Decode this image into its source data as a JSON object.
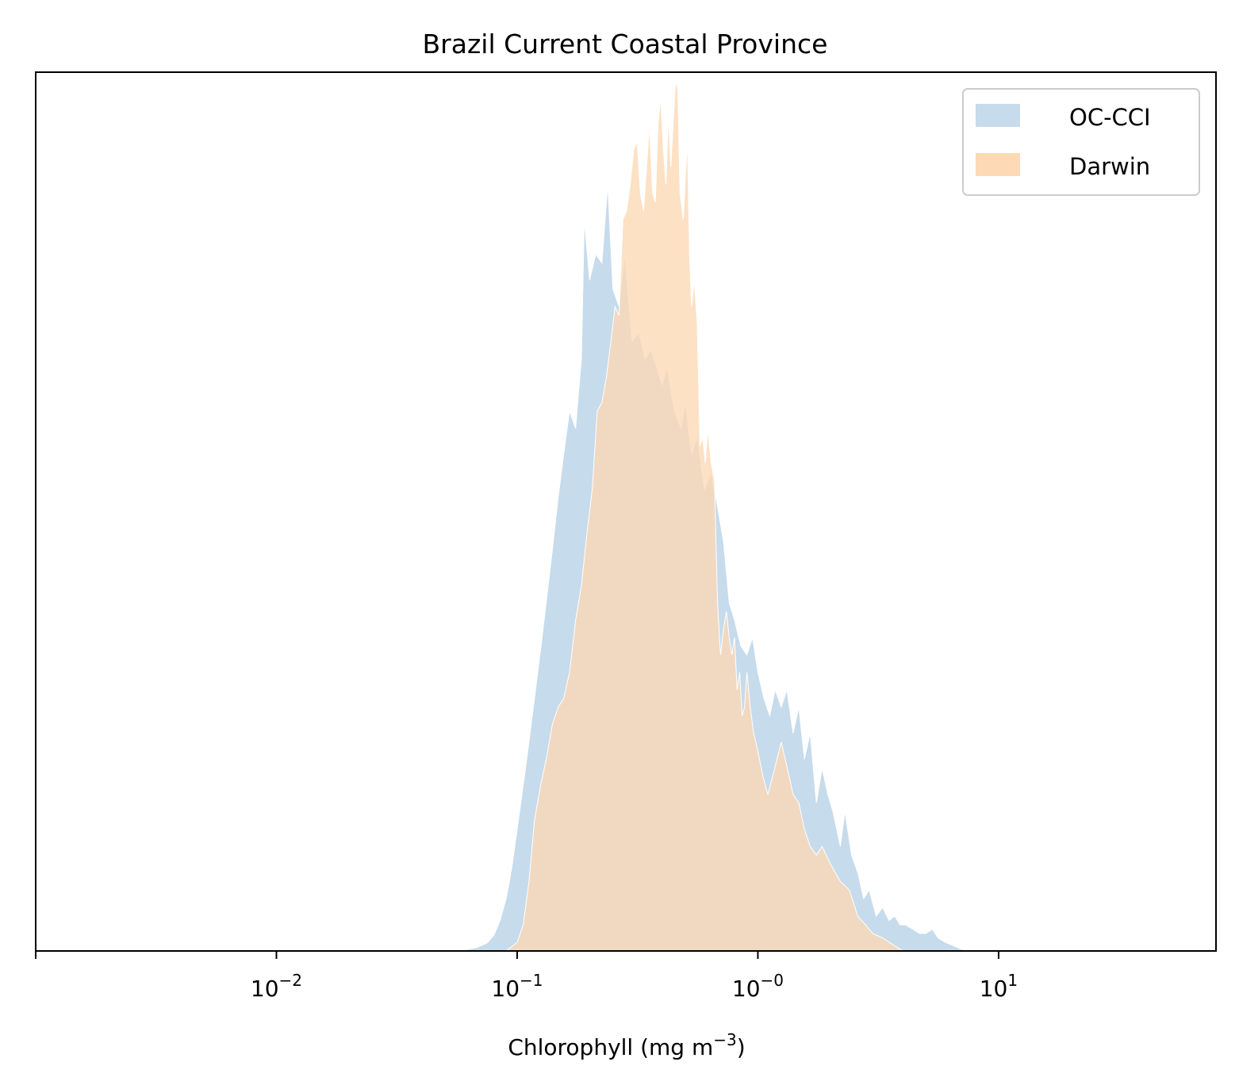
{
  "chart_data": {
    "type": "area",
    "title": "Brazil Current Coastal Province",
    "xlabel_main": "Chlorophyll  (mg m",
    "xlabel_sup": "−3",
    "xlabel_tail": ")",
    "xscale": "log",
    "xlim": [
      0.001,
      80
    ],
    "ylim": [
      0,
      1
    ],
    "yaxis_ticks": "none",
    "grid": false,
    "legend_loc": "upper right",
    "x_ticks": [
      {
        "value": 0.001,
        "base": "",
        "exp": ""
      },
      {
        "value": 0.01,
        "base": "10",
        "exp": "−2"
      },
      {
        "value": 0.1,
        "base": "10",
        "exp": "−1"
      },
      {
        "value": 1,
        "base": "10",
        "exp": "−0"
      },
      {
        "value": 10,
        "base": "10",
        "exp": "1"
      }
    ],
    "series": [
      {
        "name": "OC-CCI",
        "color": "#c6dbeb",
        "x": [
          0.05,
          0.06,
          0.068,
          0.075,
          0.08,
          0.085,
          0.09,
          0.095,
          0.1,
          0.106,
          0.112,
          0.118,
          0.125,
          0.132,
          0.14,
          0.148,
          0.156,
          0.165,
          0.175,
          0.185,
          0.19,
          0.2,
          0.212,
          0.225,
          0.238,
          0.25,
          0.265,
          0.28,
          0.3,
          0.32,
          0.34,
          0.36,
          0.38,
          0.4,
          0.42,
          0.45,
          0.48,
          0.5,
          0.53,
          0.56,
          0.6,
          0.64,
          0.68,
          0.72,
          0.76,
          0.8,
          0.85,
          0.9,
          0.95,
          1.0,
          1.06,
          1.12,
          1.18,
          1.25,
          1.32,
          1.4,
          1.48,
          1.56,
          1.65,
          1.75,
          1.85,
          1.95,
          2.05,
          2.2,
          2.3,
          2.45,
          2.6,
          2.75,
          2.9,
          3.1,
          3.3,
          3.5,
          3.7,
          3.9,
          4.1,
          4.4,
          4.7,
          5.0,
          5.3,
          5.6,
          6.0,
          6.5,
          7.0,
          8.0
        ],
        "values": [
          0.0,
          0.001,
          0.004,
          0.009,
          0.018,
          0.035,
          0.06,
          0.095,
          0.14,
          0.19,
          0.24,
          0.29,
          0.345,
          0.4,
          0.46,
          0.52,
          0.57,
          0.62,
          0.6,
          0.68,
          0.84,
          0.77,
          0.8,
          0.79,
          0.88,
          0.76,
          0.74,
          0.8,
          0.7,
          0.71,
          0.68,
          0.69,
          0.67,
          0.65,
          0.67,
          0.62,
          0.6,
          0.63,
          0.57,
          0.59,
          0.53,
          0.55,
          0.51,
          0.47,
          0.4,
          0.38,
          0.35,
          0.34,
          0.36,
          0.32,
          0.29,
          0.27,
          0.3,
          0.28,
          0.3,
          0.25,
          0.28,
          0.22,
          0.25,
          0.17,
          0.21,
          0.18,
          0.16,
          0.12,
          0.16,
          0.11,
          0.09,
          0.06,
          0.07,
          0.04,
          0.05,
          0.035,
          0.04,
          0.03,
          0.03,
          0.025,
          0.02,
          0.02,
          0.025,
          0.015,
          0.01,
          0.006,
          0.002,
          0.0
        ]
      },
      {
        "name": "Darwin",
        "color": "#fdd9b5",
        "x": [
          0.09,
          0.095,
          0.1,
          0.106,
          0.112,
          0.118,
          0.125,
          0.132,
          0.14,
          0.148,
          0.156,
          0.165,
          0.175,
          0.185,
          0.195,
          0.205,
          0.215,
          0.225,
          0.235,
          0.245,
          0.255,
          0.265,
          0.275,
          0.285,
          0.295,
          0.305,
          0.315,
          0.325,
          0.335,
          0.345,
          0.355,
          0.365,
          0.375,
          0.385,
          0.395,
          0.405,
          0.415,
          0.425,
          0.435,
          0.445,
          0.455,
          0.465,
          0.475,
          0.49,
          0.5,
          0.51,
          0.52,
          0.53,
          0.545,
          0.56,
          0.575,
          0.59,
          0.605,
          0.62,
          0.64,
          0.66,
          0.68,
          0.7,
          0.72,
          0.74,
          0.76,
          0.78,
          0.8,
          0.82,
          0.84,
          0.86,
          0.88,
          0.9,
          0.93,
          0.96,
          1.0,
          1.05,
          1.1,
          1.15,
          1.2,
          1.25,
          1.3,
          1.35,
          1.4,
          1.48,
          1.56,
          1.65,
          1.75,
          1.85,
          2.0,
          2.2,
          2.4,
          2.6,
          2.8,
          3.0,
          3.3,
          3.6,
          4.0
        ],
        "values": [
          0.0,
          0.005,
          0.01,
          0.03,
          0.08,
          0.15,
          0.19,
          0.22,
          0.26,
          0.28,
          0.29,
          0.32,
          0.38,
          0.42,
          0.48,
          0.53,
          0.62,
          0.63,
          0.66,
          0.7,
          0.74,
          0.73,
          0.84,
          0.85,
          0.88,
          0.92,
          0.93,
          0.87,
          0.85,
          0.9,
          0.95,
          0.87,
          0.86,
          0.95,
          0.98,
          0.92,
          0.88,
          0.96,
          0.9,
          0.95,
          1.0,
          0.99,
          0.87,
          0.84,
          0.89,
          0.93,
          0.8,
          0.74,
          0.77,
          0.72,
          0.58,
          0.59,
          0.56,
          0.6,
          0.56,
          0.54,
          0.4,
          0.34,
          0.37,
          0.39,
          0.36,
          0.34,
          0.36,
          0.3,
          0.32,
          0.27,
          0.28,
          0.32,
          0.28,
          0.25,
          0.23,
          0.2,
          0.18,
          0.2,
          0.22,
          0.24,
          0.22,
          0.2,
          0.18,
          0.17,
          0.14,
          0.12,
          0.11,
          0.12,
          0.1,
          0.08,
          0.07,
          0.04,
          0.03,
          0.02,
          0.015,
          0.008,
          0.0
        ]
      }
    ]
  }
}
